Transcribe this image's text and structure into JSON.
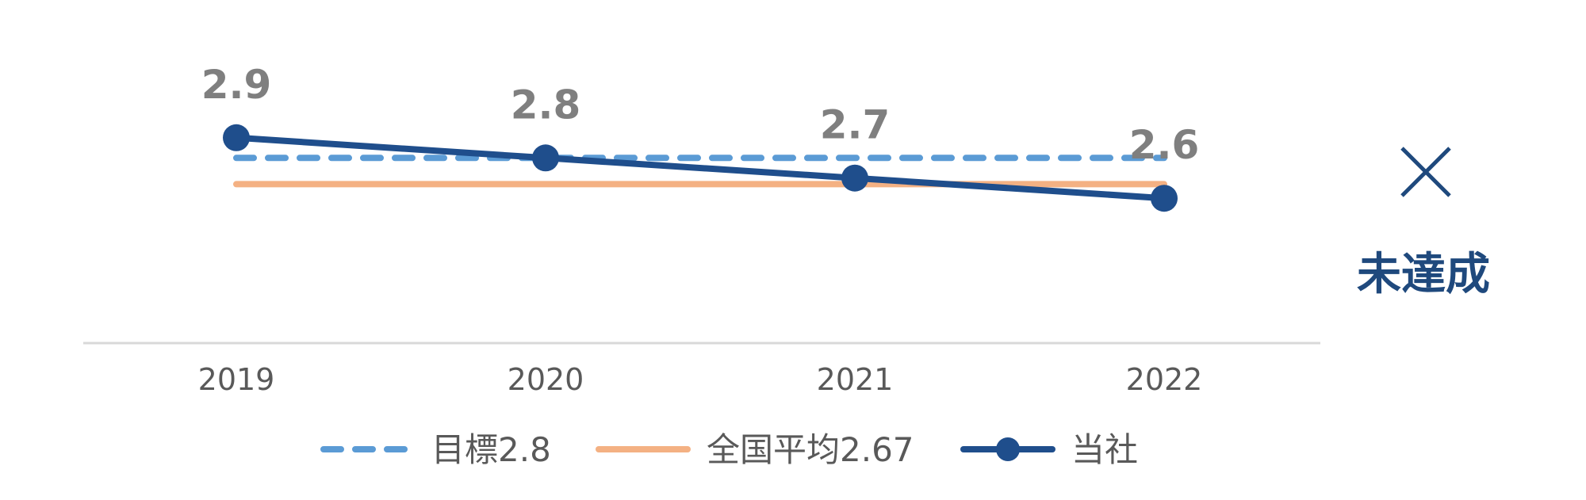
{
  "chart_data": {
    "type": "line",
    "categories": [
      "2019",
      "2020",
      "2021",
      "2022"
    ],
    "series": [
      {
        "name": "目標2.8",
        "values": [
          2.8,
          2.8,
          2.8,
          2.8
        ],
        "style": "dashed",
        "color": "#5b9bd5"
      },
      {
        "name": "全国平均2.67",
        "values": [
          2.67,
          2.67,
          2.67,
          2.67
        ],
        "style": "solid",
        "color": "#f4b183"
      },
      {
        "name": "当社",
        "values": [
          2.9,
          2.8,
          2.7,
          2.6
        ],
        "style": "solid-markers",
        "color": "#1f4e8c"
      }
    ],
    "data_labels": [
      "2.9",
      "2.8",
      "2.7",
      "2.6"
    ],
    "title": "",
    "xlabel": "",
    "ylabel": "",
    "ylim": [
      2.0,
      3.5
    ],
    "grid": false,
    "legend_position": "bottom"
  },
  "status": {
    "mark": "×",
    "label": "未達成",
    "icon": "cross-icon",
    "color": "#1f497d"
  }
}
